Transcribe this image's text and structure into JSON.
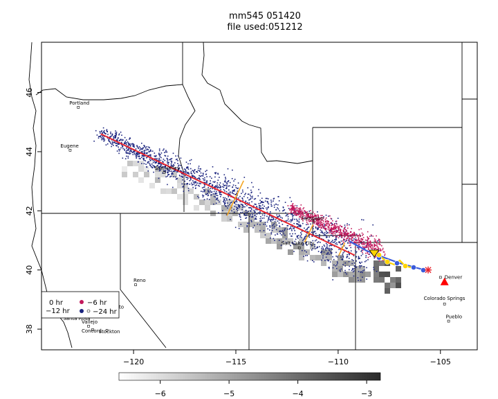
{
  "title": {
    "line1": "mm545 051420",
    "line2": "file used:051212"
  },
  "axes": {
    "x_ticks": [
      -120,
      -115,
      -110,
      -105
    ],
    "y_ticks": [
      38,
      40,
      42,
      44,
      46
    ],
    "x_tick_labels": [
      "−120",
      "−115",
      "−110",
      "−105"
    ],
    "y_tick_labels": [
      "38",
      "40",
      "42",
      "44",
      "46"
    ],
    "xlim": [
      -124.5,
      -103.2
    ],
    "ylim": [
      37.3,
      47.7
    ]
  },
  "colorbar": {
    "ticks": [
      -6,
      -5,
      -4,
      -3
    ],
    "tick_labels": [
      "−6",
      "−5",
      "−4",
      "−3"
    ],
    "range": [
      -6.6,
      -2.8
    ]
  },
  "cities": [
    {
      "name": "Portland",
      "lon": -122.7,
      "lat": 45.5
    },
    {
      "name": "Eugene",
      "lon": -123.1,
      "lat": 44.05
    },
    {
      "name": "Sun Valley",
      "lon": -118.5,
      "lat": 43.3
    },
    {
      "name": "Reno",
      "lon": -119.9,
      "lat": 39.5
    },
    {
      "name": "Sacramento",
      "lon": -121.5,
      "lat": 38.6
    },
    {
      "name": "Santa Rosa",
      "lon": -122.7,
      "lat": 38.45
    },
    {
      "name": "Vallejo",
      "lon": -122.2,
      "lat": 38.1
    },
    {
      "name": "Concord",
      "lon": -122.0,
      "lat": 37.98
    },
    {
      "name": "Stockton",
      "lon": -121.3,
      "lat": 37.96
    },
    {
      "name": "Salt Lake City",
      "lon": -111.9,
      "lat": 40.75
    },
    {
      "name": "Sampson",
      "lon": -111.2,
      "lat": 41.65
    },
    {
      "name": "Denver",
      "lon": -105.0,
      "lat": 39.75
    },
    {
      "name": "Colorado Springs",
      "lon": -104.8,
      "lat": 38.85
    },
    {
      "name": "Pueblo",
      "lon": -104.6,
      "lat": 38.27
    }
  ],
  "legend": {
    "label_0": "0 hr",
    "label_6": "−6 hr",
    "label_12": "−12 hr",
    "label_24": "−24 hr"
  },
  "trajectory_red": {
    "color": "#e8252e",
    "start": [
      -121.6,
      44.6
    ],
    "end": [
      -109.2,
      40.5
    ]
  },
  "release_point": {
    "lon": -105.6,
    "lat": 40.0,
    "color": "#e8252e"
  },
  "receptor_triangle": {
    "lon": -104.8,
    "lat": 39.6,
    "color": "#ff0000"
  },
  "colors": {
    "blue_particles": "#1a237e",
    "red_particles": "#c2185b",
    "yellow_track": "#ffd400",
    "blue_track": "#3a5bdc",
    "orange_marks": "#f5a623"
  }
}
